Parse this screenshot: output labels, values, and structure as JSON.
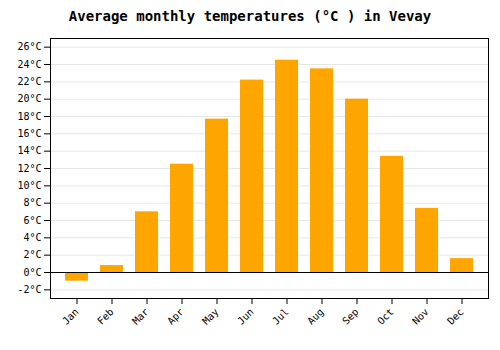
{
  "chart_data": {
    "type": "bar",
    "title": "Average monthly temperatures (°C ) in Vevay",
    "categories": [
      "Jan",
      "Feb",
      "Mar",
      "Apr",
      "May",
      "Jun",
      "Jul",
      "Aug",
      "Sep",
      "Oct",
      "Nov",
      "Dec"
    ],
    "values": [
      -1.0,
      0.8,
      7.0,
      12.5,
      17.7,
      22.2,
      24.5,
      23.5,
      20.0,
      13.4,
      7.4,
      1.6
    ],
    "color": "#FFA500",
    "ylim": [
      -3,
      27
    ],
    "yticks": [
      {
        "value": -2,
        "label": "-2°C"
      },
      {
        "value": 0,
        "label": "0°C"
      },
      {
        "value": 2,
        "label": "2°C"
      },
      {
        "value": 4,
        "label": "4°C"
      },
      {
        "value": 6,
        "label": "6°C"
      },
      {
        "value": 8,
        "label": "8°C"
      },
      {
        "value": 10,
        "label": "10°C"
      },
      {
        "value": 12,
        "label": "12°C"
      },
      {
        "value": 14,
        "label": "14°C"
      },
      {
        "value": 16,
        "label": "16°C"
      },
      {
        "value": 18,
        "label": "18°C"
      },
      {
        "value": 20,
        "label": "20°C"
      },
      {
        "value": 22,
        "label": "22°C"
      },
      {
        "value": 24,
        "label": "24°C"
      },
      {
        "value": 26,
        "label": "26°C"
      }
    ],
    "grid": true
  }
}
